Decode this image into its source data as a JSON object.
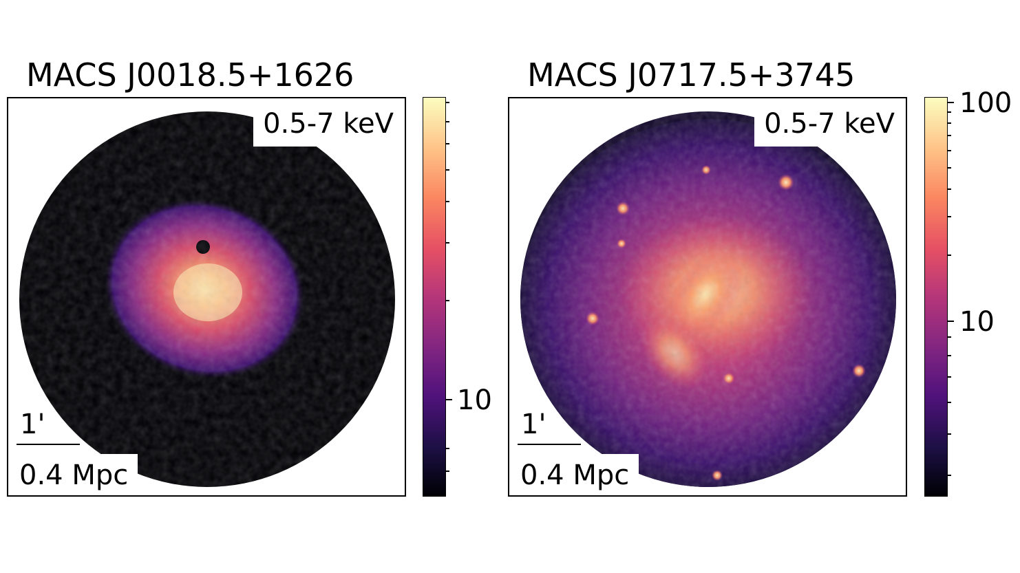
{
  "figure": {
    "panels": [
      {
        "title": "MACS J0018.5+1626",
        "energy_band": "0.5-7 keV",
        "scale_angular": "1'",
        "scale_physical": "0.4 Mpc",
        "colorbar": {
          "colormap": "magma",
          "major_tick_labels": [
            "10"
          ]
        }
      },
      {
        "title": "MACS J0717.5+3745",
        "energy_band": "0.5-7 keV",
        "scale_angular": "1'",
        "scale_physical": "0.4 Mpc",
        "colorbar": {
          "colormap": "magma",
          "major_tick_labels": [
            "10",
            "100"
          ]
        }
      }
    ],
    "colors": {
      "background": "#000004",
      "cmap_low": "#1c1044",
      "cmap_mid": "#b5367a",
      "cmap_high": "#fcfdbf"
    }
  }
}
